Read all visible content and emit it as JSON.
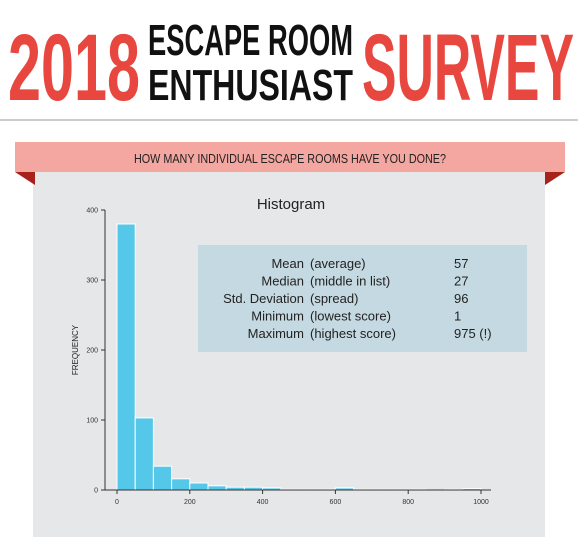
{
  "header": {
    "year": "2018",
    "line1": "ESCAPE ROOM",
    "line2": "ENTHUSIAST",
    "word": "SURVEY"
  },
  "question": "HOW MANY INDIVIDUAL ESCAPE ROOMS HAVE YOU DONE?",
  "chart_data": {
    "type": "histogram",
    "title": "Histogram",
    "y_label": "FREQUENCY",
    "color": "#55c8ea",
    "bins": [
      0,
      50,
      100,
      150,
      200,
      250,
      300,
      350,
      400,
      450,
      500,
      550,
      600,
      650,
      700,
      750,
      800,
      850,
      900,
      950,
      1000
    ],
    "counts": [
      380,
      103,
      34,
      16,
      10,
      6,
      4,
      4,
      3,
      1,
      1,
      1,
      3,
      1,
      1,
      1,
      1,
      0,
      1,
      2
    ],
    "xlim": [
      0,
      1000
    ],
    "xticks": [
      0,
      200,
      400,
      600,
      800,
      1000
    ],
    "ylim": [
      0,
      400
    ],
    "yticks": [
      0,
      100,
      200,
      300,
      400
    ],
    "stats": [
      {
        "name": "Mean",
        "description": "(average)",
        "value": 57
      },
      {
        "name": "Median",
        "description": "(middle in list)",
        "value": 27
      },
      {
        "name": "Std. Deviation",
        "description": "(spread)",
        "value": 96
      },
      {
        "name": "Minimum",
        "description": "(lowest score)",
        "value": 1
      },
      {
        "name": "Maximum",
        "description": "(highest score)",
        "value": 975,
        "value_label": "975 (!)"
      }
    ]
  }
}
